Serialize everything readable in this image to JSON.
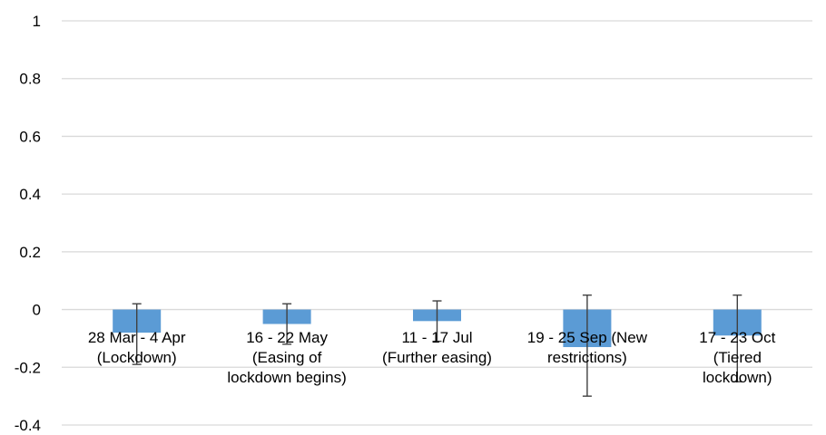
{
  "chart_data": {
    "type": "bar",
    "categories": [
      [
        "28 Mar - 4 Apr",
        "(Lockdown)"
      ],
      [
        "16 - 22 May",
        "(Easing of",
        "lockdown begins)"
      ],
      [
        "11 - 17 Jul",
        "(Further easing)"
      ],
      [
        "19 - 25 Sep (New",
        "restrictions)"
      ],
      [
        "17 - 23 Oct",
        "(Tiered",
        "lockdown)"
      ]
    ],
    "values": [
      -0.08,
      -0.05,
      -0.04,
      -0.13,
      -0.09
    ],
    "error_bars": [
      {
        "low": -0.19,
        "high": 0.02
      },
      {
        "low": -0.12,
        "high": 0.02
      },
      {
        "low": -0.11,
        "high": 0.03
      },
      {
        "low": -0.3,
        "high": 0.05
      },
      {
        "low": -0.25,
        "high": 0.05
      }
    ],
    "ylim": [
      -0.4,
      1
    ],
    "yticks": [
      1,
      0.8,
      0.6,
      0.4,
      0.2,
      0,
      -0.2,
      -0.4
    ],
    "ytick_labels": [
      "1",
      "0.8",
      "0.6",
      "0.4",
      "0.2",
      "0",
      "-0.2",
      "-0.4"
    ],
    "grid": true,
    "colors": {
      "bar": "#5B9BD5",
      "grid": "#D9D9D9",
      "error_bar": "#404040"
    }
  }
}
